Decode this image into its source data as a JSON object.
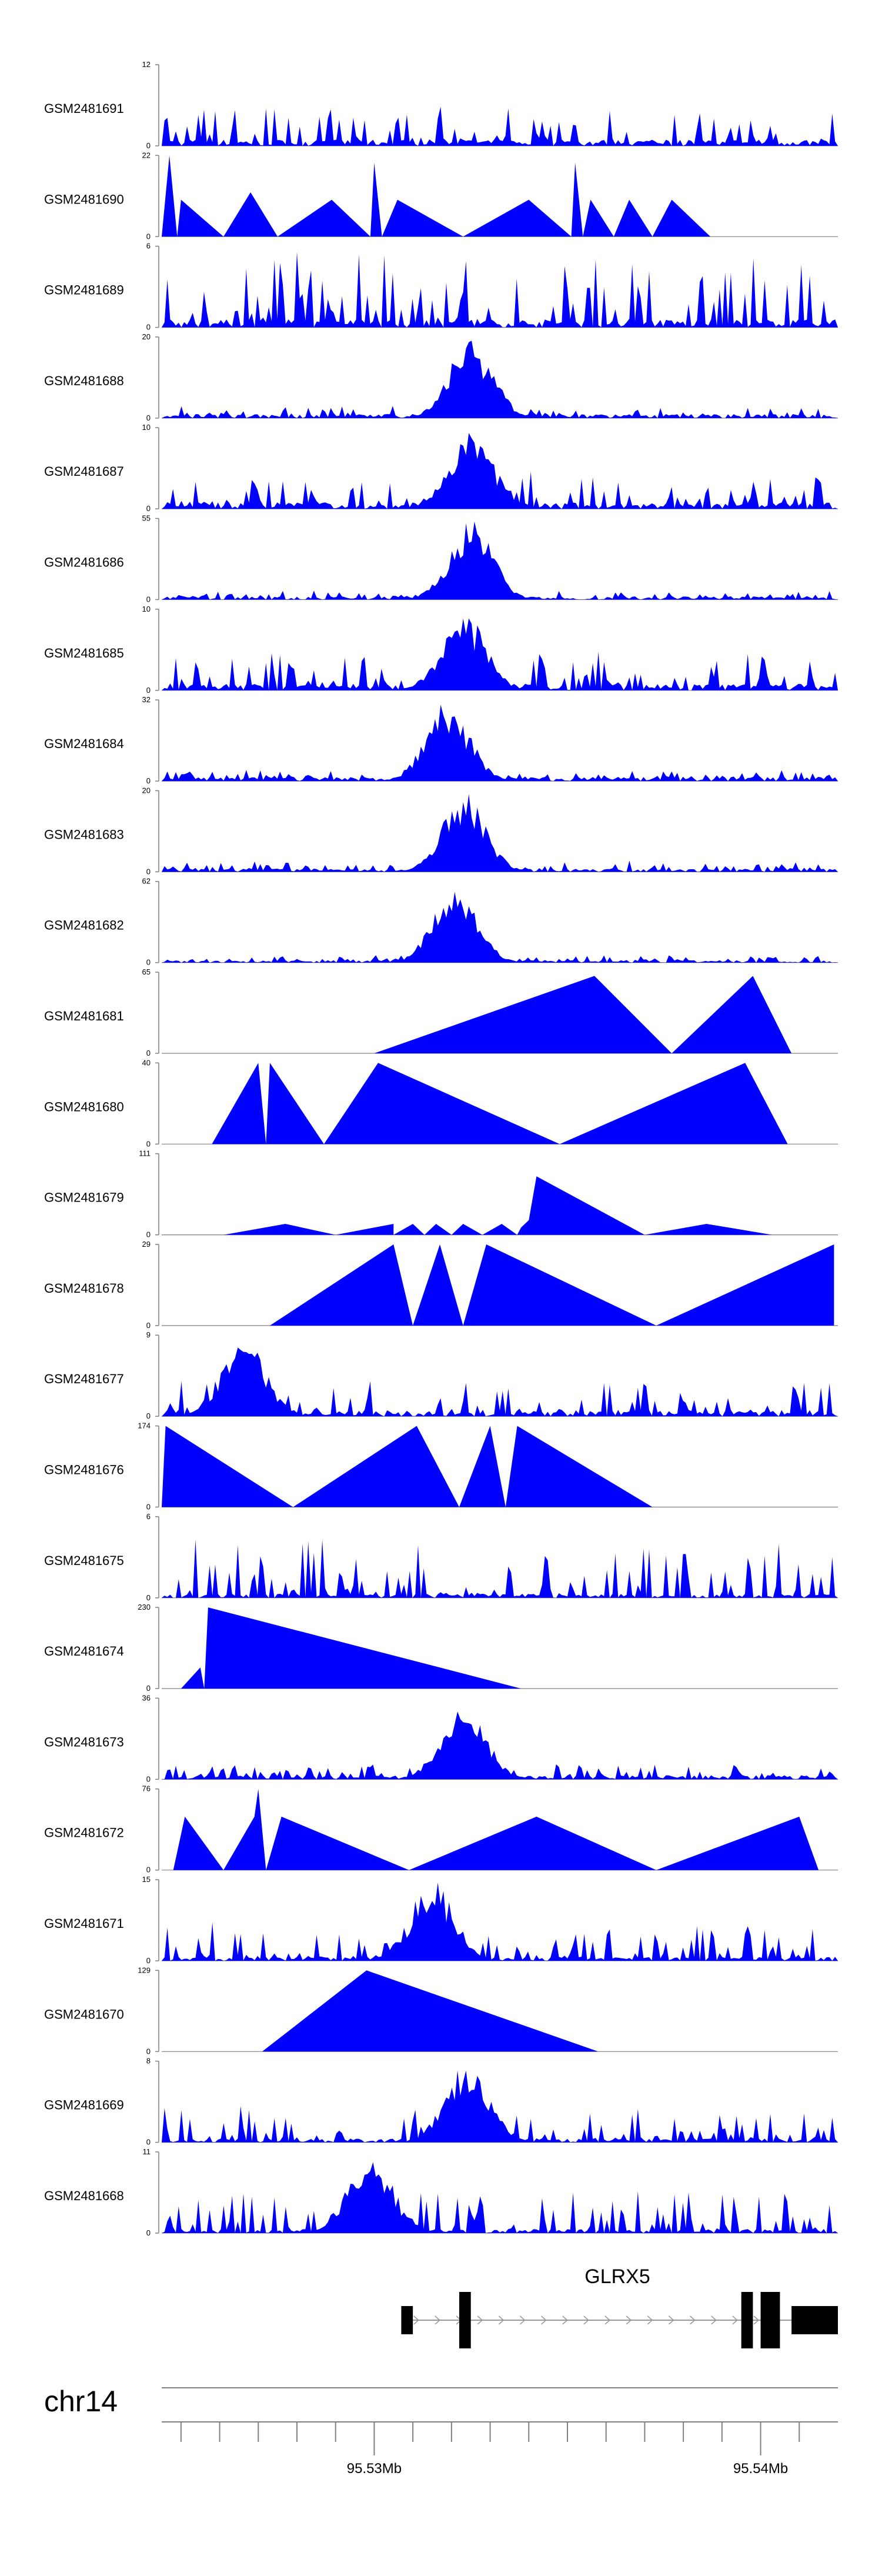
{
  "colors": {
    "signal": "#0000ff",
    "axis": "#808080",
    "gene": "#000000",
    "intron": "#999999"
  },
  "chart_data": {
    "type": "area",
    "x_axis": {
      "chromosome": "chr14",
      "range_mb": [
        95.5245,
        95.542
      ],
      "tick_labels": [
        {
          "value": 95.53,
          "label": "95.53Mb"
        },
        {
          "value": 95.54,
          "label": "95.54Mb"
        }
      ],
      "minor_ticks_mb": [
        95.525,
        95.526,
        95.527,
        95.528,
        95.529,
        95.531,
        95.532,
        95.533,
        95.534,
        95.535,
        95.536,
        95.537,
        95.538,
        95.539,
        95.541
      ]
    },
    "gene": {
      "name": "GLRX5",
      "strand": "+",
      "start_mb": 95.5307,
      "end_mb": 95.542,
      "exons_mb": [
        [
          95.5307,
          95.531
        ],
        [
          95.5322,
          95.5325
        ],
        [
          95.5395,
          95.5398
        ],
        [
          95.54,
          95.5405
        ],
        [
          95.5408,
          95.542
        ]
      ]
    },
    "tracks": [
      {
        "name": "GSM2481691",
        "ymax": 12
      },
      {
        "name": "GSM2481690",
        "ymax": 22
      },
      {
        "name": "GSM2481689",
        "ymax": 6
      },
      {
        "name": "GSM2481688",
        "ymax": 20
      },
      {
        "name": "GSM2481687",
        "ymax": 10
      },
      {
        "name": "GSM2481686",
        "ymax": 55
      },
      {
        "name": "GSM2481685",
        "ymax": 10
      },
      {
        "name": "GSM2481684",
        "ymax": 32
      },
      {
        "name": "GSM2481683",
        "ymax": 20
      },
      {
        "name": "GSM2481682",
        "ymax": 62
      },
      {
        "name": "GSM2481681",
        "ymax": 65
      },
      {
        "name": "GSM2481680",
        "ymax": 40
      },
      {
        "name": "GSM2481679",
        "ymax": 111
      },
      {
        "name": "GSM2481678",
        "ymax": 29
      },
      {
        "name": "GSM2481677",
        "ymax": 9
      },
      {
        "name": "GSM2481676",
        "ymax": 174
      },
      {
        "name": "GSM2481675",
        "ymax": 6
      },
      {
        "name": "GSM2481674",
        "ymax": 230
      },
      {
        "name": "GSM2481673",
        "ymax": 36
      },
      {
        "name": "GSM2481672",
        "ymax": 76
      },
      {
        "name": "GSM2481671",
        "ymax": 15
      },
      {
        "name": "GSM2481670",
        "ymax": 129
      },
      {
        "name": "GSM2481669",
        "ymax": 8
      },
      {
        "name": "GSM2481668",
        "ymax": 11
      }
    ],
    "sparse_profiles": {
      "GSM2481690": [
        [
          95.5245,
          0
        ],
        [
          95.5247,
          22
        ],
        [
          95.5249,
          0
        ],
        [
          95.525,
          10
        ],
        [
          95.5261,
          0
        ],
        [
          95.5268,
          12
        ],
        [
          95.5275,
          0
        ],
        [
          95.5289,
          10
        ],
        [
          95.5299,
          0
        ],
        [
          95.53,
          20
        ],
        [
          95.5302,
          0
        ],
        [
          95.5306,
          10
        ],
        [
          95.5323,
          0
        ],
        [
          95.534,
          10
        ],
        [
          95.5351,
          0
        ],
        [
          95.5352,
          20
        ],
        [
          95.5354,
          0
        ],
        [
          95.5356,
          10
        ],
        [
          95.5362,
          0
        ],
        [
          95.5366,
          10
        ],
        [
          95.5372,
          0
        ],
        [
          95.5377,
          10
        ],
        [
          95.5387,
          0
        ]
      ],
      "GSM2481681": [
        [
          95.53,
          0
        ],
        [
          95.5357,
          62
        ],
        [
          95.5377,
          0
        ],
        [
          95.5398,
          62
        ],
        [
          95.5408,
          0
        ]
      ],
      "GSM2481680": [
        [
          95.5258,
          0
        ],
        [
          95.527,
          40
        ],
        [
          95.5272,
          0
        ],
        [
          95.5273,
          40
        ],
        [
          95.5287,
          0
        ],
        [
          95.5301,
          40
        ],
        [
          95.5348,
          0
        ],
        [
          95.5396,
          40
        ],
        [
          95.5407,
          0
        ]
      ],
      "GSM2481679": [
        [
          95.5261,
          0
        ],
        [
          95.5277,
          15
        ],
        [
          95.529,
          0
        ],
        [
          95.5305,
          15
        ],
        [
          95.5305,
          0
        ],
        [
          95.531,
          15
        ],
        [
          95.5313,
          0
        ],
        [
          95.5316,
          15
        ],
        [
          95.532,
          0
        ],
        [
          95.5323,
          15
        ],
        [
          95.5328,
          0
        ],
        [
          95.5333,
          15
        ],
        [
          95.5337,
          0
        ],
        [
          95.5338,
          10
        ],
        [
          95.534,
          20
        ],
        [
          95.5342,
          80
        ],
        [
          95.537,
          0
        ],
        [
          95.5386,
          15
        ],
        [
          95.5403,
          0
        ]
      ],
      "GSM2481678": [
        [
          95.5273,
          0
        ],
        [
          95.5305,
          29
        ],
        [
          95.531,
          0
        ],
        [
          95.5317,
          29
        ],
        [
          95.5323,
          0
        ],
        [
          95.5329,
          29
        ],
        [
          95.5373,
          0
        ],
        [
          95.5419,
          29
        ],
        [
          95.5419,
          0
        ]
      ],
      "GSM2481676": [
        [
          95.5245,
          0
        ],
        [
          95.5246,
          174
        ],
        [
          95.5279,
          0
        ],
        [
          95.5311,
          174
        ],
        [
          95.5322,
          0
        ],
        [
          95.533,
          174
        ],
        [
          95.5334,
          0
        ],
        [
          95.5337,
          174
        ],
        [
          95.5372,
          0
        ]
      ],
      "GSM2481674": [
        [
          95.525,
          0
        ],
        [
          95.5255,
          60
        ],
        [
          95.5256,
          0
        ],
        [
          95.5257,
          230
        ],
        [
          95.5338,
          0
        ]
      ],
      "GSM2481672": [
        [
          95.5248,
          0
        ],
        [
          95.5251,
          50
        ],
        [
          95.5261,
          0
        ],
        [
          95.5269,
          50
        ],
        [
          95.527,
          76
        ],
        [
          95.5272,
          0
        ],
        [
          95.5276,
          50
        ],
        [
          95.5309,
          0
        ],
        [
          95.5342,
          50
        ],
        [
          95.5373,
          0
        ],
        [
          95.541,
          50
        ],
        [
          95.5415,
          0
        ]
      ],
      "GSM2481670": [
        [
          95.5271,
          0
        ],
        [
          95.5298,
          129
        ],
        [
          95.5358,
          0
        ]
      ]
    },
    "dense_profiles": {
      "GSM2481691": {
        "style": "noisy",
        "baseline": 0.08,
        "noise": 0.45,
        "peak_mb": null
      },
      "GSM2481689": {
        "style": "noisy",
        "baseline": 0.1,
        "noise": 0.85,
        "peak_mb": null
      },
      "GSM2481688": {
        "style": "peak",
        "baseline": 0.05,
        "noise": 0.12,
        "peak_mb": 95.5325
      },
      "GSM2481687": {
        "style": "peak",
        "baseline": 0.08,
        "noise": 0.4,
        "peak_mb": 95.5325
      },
      "GSM2481686": {
        "style": "peak",
        "baseline": 0.04,
        "noise": 0.08,
        "peak_mb": 95.5325
      },
      "GSM2481685": {
        "style": "peak",
        "baseline": 0.08,
        "noise": 0.4,
        "peak_mb": 95.5323
      },
      "GSM2481684": {
        "style": "peak",
        "baseline": 0.05,
        "noise": 0.1,
        "peak_mb": 95.5319
      },
      "GSM2481683": {
        "style": "peak",
        "baseline": 0.04,
        "noise": 0.1,
        "peak_mb": 95.5323
      },
      "GSM2481682": {
        "style": "peak",
        "baseline": 0.03,
        "noise": 0.07,
        "peak_mb": 95.5321
      },
      "GSM2481677": {
        "style": "noisy",
        "baseline": 0.08,
        "noise": 0.4,
        "peak_mb": 95.5266
      },
      "GSM2481675": {
        "style": "noisy",
        "baseline": 0.05,
        "noise": 0.7,
        "peak_mb": null
      },
      "GSM2481673": {
        "style": "peak",
        "baseline": 0.05,
        "noise": 0.15,
        "peak_mb": 95.5323
      },
      "GSM2481671": {
        "style": "noisy",
        "baseline": 0.05,
        "noise": 0.45,
        "peak_mb": 95.5315
      },
      "GSM2481669": {
        "style": "noisy",
        "baseline": 0.05,
        "noise": 0.4,
        "peak_mb": 95.5324
      },
      "GSM2481668": {
        "style": "noisy",
        "baseline": 0.05,
        "noise": 0.5,
        "peak_mb": 95.5299
      }
    }
  }
}
